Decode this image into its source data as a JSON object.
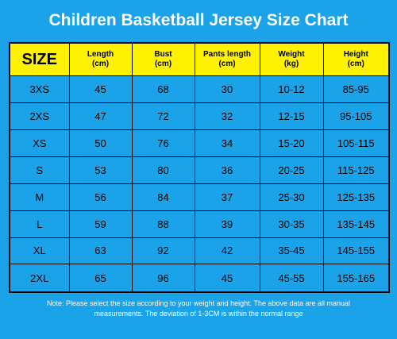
{
  "title": "Children Basketball Jersey Size Chart",
  "colors": {
    "background": "#1aa3e8",
    "header_bg": "#fff200",
    "text": "#000000",
    "title_text": "#ffffff"
  },
  "columns": [
    {
      "label": "SIZE",
      "unit": ""
    },
    {
      "label": "Length",
      "unit": "(cm)"
    },
    {
      "label": "Bust",
      "unit": "(cm)"
    },
    {
      "label": "Pants length",
      "unit": "(cm)"
    },
    {
      "label": "Weight",
      "unit": "(kg)"
    },
    {
      "label": "Height",
      "unit": "(cm)"
    }
  ],
  "rows": [
    [
      "3XS",
      "45",
      "68",
      "30",
      "10-12",
      "85-95"
    ],
    [
      "2XS",
      "47",
      "72",
      "32",
      "12-15",
      "95-105"
    ],
    [
      "XS",
      "50",
      "76",
      "34",
      "15-20",
      "105-115"
    ],
    [
      "S",
      "53",
      "80",
      "36",
      "20-25",
      "115-125"
    ],
    [
      "M",
      "56",
      "84",
      "37",
      "25-30",
      "125-135"
    ],
    [
      "L",
      "59",
      "88",
      "39",
      "30-35",
      "135-145"
    ],
    [
      "XL",
      "63",
      "92",
      "42",
      "35-45",
      "145-155"
    ],
    [
      "2XL",
      "65",
      "96",
      "45",
      "45-55",
      "155-165"
    ]
  ],
  "note": {
    "line1": "Note: Please select the size according to your weight and height. The above data are all manual",
    "line2": "measurements. The deviation of 1-3CM is within the normal range"
  }
}
